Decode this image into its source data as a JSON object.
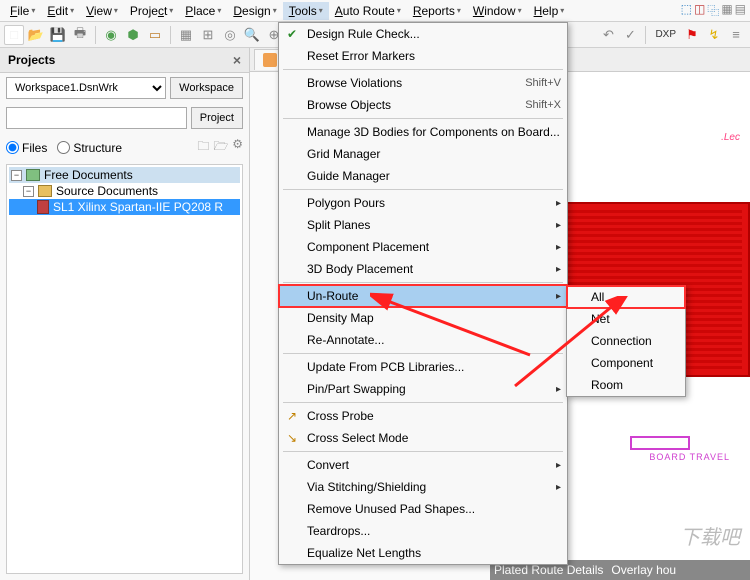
{
  "menubar": {
    "items": [
      {
        "label": "File",
        "u": "F"
      },
      {
        "label": "Edit",
        "u": "E"
      },
      {
        "label": "View",
        "u": "V"
      },
      {
        "label": "Project",
        "u": "c"
      },
      {
        "label": "Place",
        "u": "P"
      },
      {
        "label": "Design",
        "u": "D"
      },
      {
        "label": "Tools",
        "u": "T"
      },
      {
        "label": "Auto Route",
        "u": "A"
      },
      {
        "label": "Reports",
        "u": "R"
      },
      {
        "label": "Window",
        "u": "W"
      },
      {
        "label": "Help",
        "u": "H"
      }
    ],
    "active_index": 6
  },
  "toolbar_right": {
    "dxp_label": "DXP"
  },
  "projects": {
    "title": "Projects",
    "workspace_value": "Workspace1.DsnWrk",
    "workspace_btn": "Workspace",
    "project_btn": "Project",
    "files_label": "Files",
    "structure_label": "Structure",
    "files_checked": true,
    "tree": {
      "root": "Free Documents",
      "child1": "Source Documents",
      "child2": "SL1 Xilinx Spartan-IIE PQ208 R"
    }
  },
  "tabs": {
    "home": "Ho"
  },
  "pcb": {
    "net_label": ".Lec",
    "board_travel": "BOARD  TRAVEL"
  },
  "status": {
    "item1": "Plated Route Details",
    "item2": "Overlay hou"
  },
  "tools_menu": {
    "groups": [
      [
        {
          "label": "Design Rule Check...",
          "icon": "✔",
          "icon_color": "#2a8a2a"
        },
        {
          "label": "Reset Error Markers"
        }
      ],
      [
        {
          "label": "Browse Violations",
          "shortcut": "Shift+V"
        },
        {
          "label": "Browse Objects",
          "shortcut": "Shift+X"
        }
      ],
      [
        {
          "label": "Manage 3D Bodies for Components on Board..."
        },
        {
          "label": "Grid Manager"
        },
        {
          "label": "Guide Manager"
        }
      ],
      [
        {
          "label": "Polygon Pours",
          "submenu": true
        },
        {
          "label": "Split Planes",
          "submenu": true
        },
        {
          "label": "Component Placement",
          "submenu": true
        },
        {
          "label": "3D Body Placement",
          "submenu": true
        }
      ],
      [
        {
          "label": "Un-Route",
          "submenu": true,
          "highlighted": true,
          "boxed": true
        },
        {
          "label": "Density Map"
        },
        {
          "label": "Re-Annotate..."
        }
      ],
      [
        {
          "label": "Update From PCB Libraries..."
        },
        {
          "label": "Pin/Part Swapping",
          "submenu": true
        }
      ],
      [
        {
          "label": "Cross Probe",
          "icon": "↗",
          "icon_color": "#c08000"
        },
        {
          "label": "Cross Select Mode",
          "icon": "↘",
          "icon_color": "#c08000"
        }
      ],
      [
        {
          "label": "Convert",
          "submenu": true
        },
        {
          "label": "Via Stitching/Shielding",
          "submenu": true
        },
        {
          "label": "Remove Unused Pad Shapes..."
        },
        {
          "label": "Teardrops..."
        },
        {
          "label": "Equalize Net Lengths"
        }
      ]
    ]
  },
  "unroute_submenu": {
    "items": [
      {
        "label": "All",
        "u": "A",
        "boxed": true
      },
      {
        "label": "Net",
        "u": "N"
      },
      {
        "label": "Connection",
        "u": "C"
      },
      {
        "label": "Component",
        "u": "o"
      },
      {
        "label": "Room",
        "u": "R"
      }
    ]
  },
  "colors": {
    "highlight_bg": "#a8cff0",
    "red_box": "#ff3030",
    "pcb_red": "#e01010",
    "magenta": "#d040d0"
  },
  "watermark": "下载吧"
}
